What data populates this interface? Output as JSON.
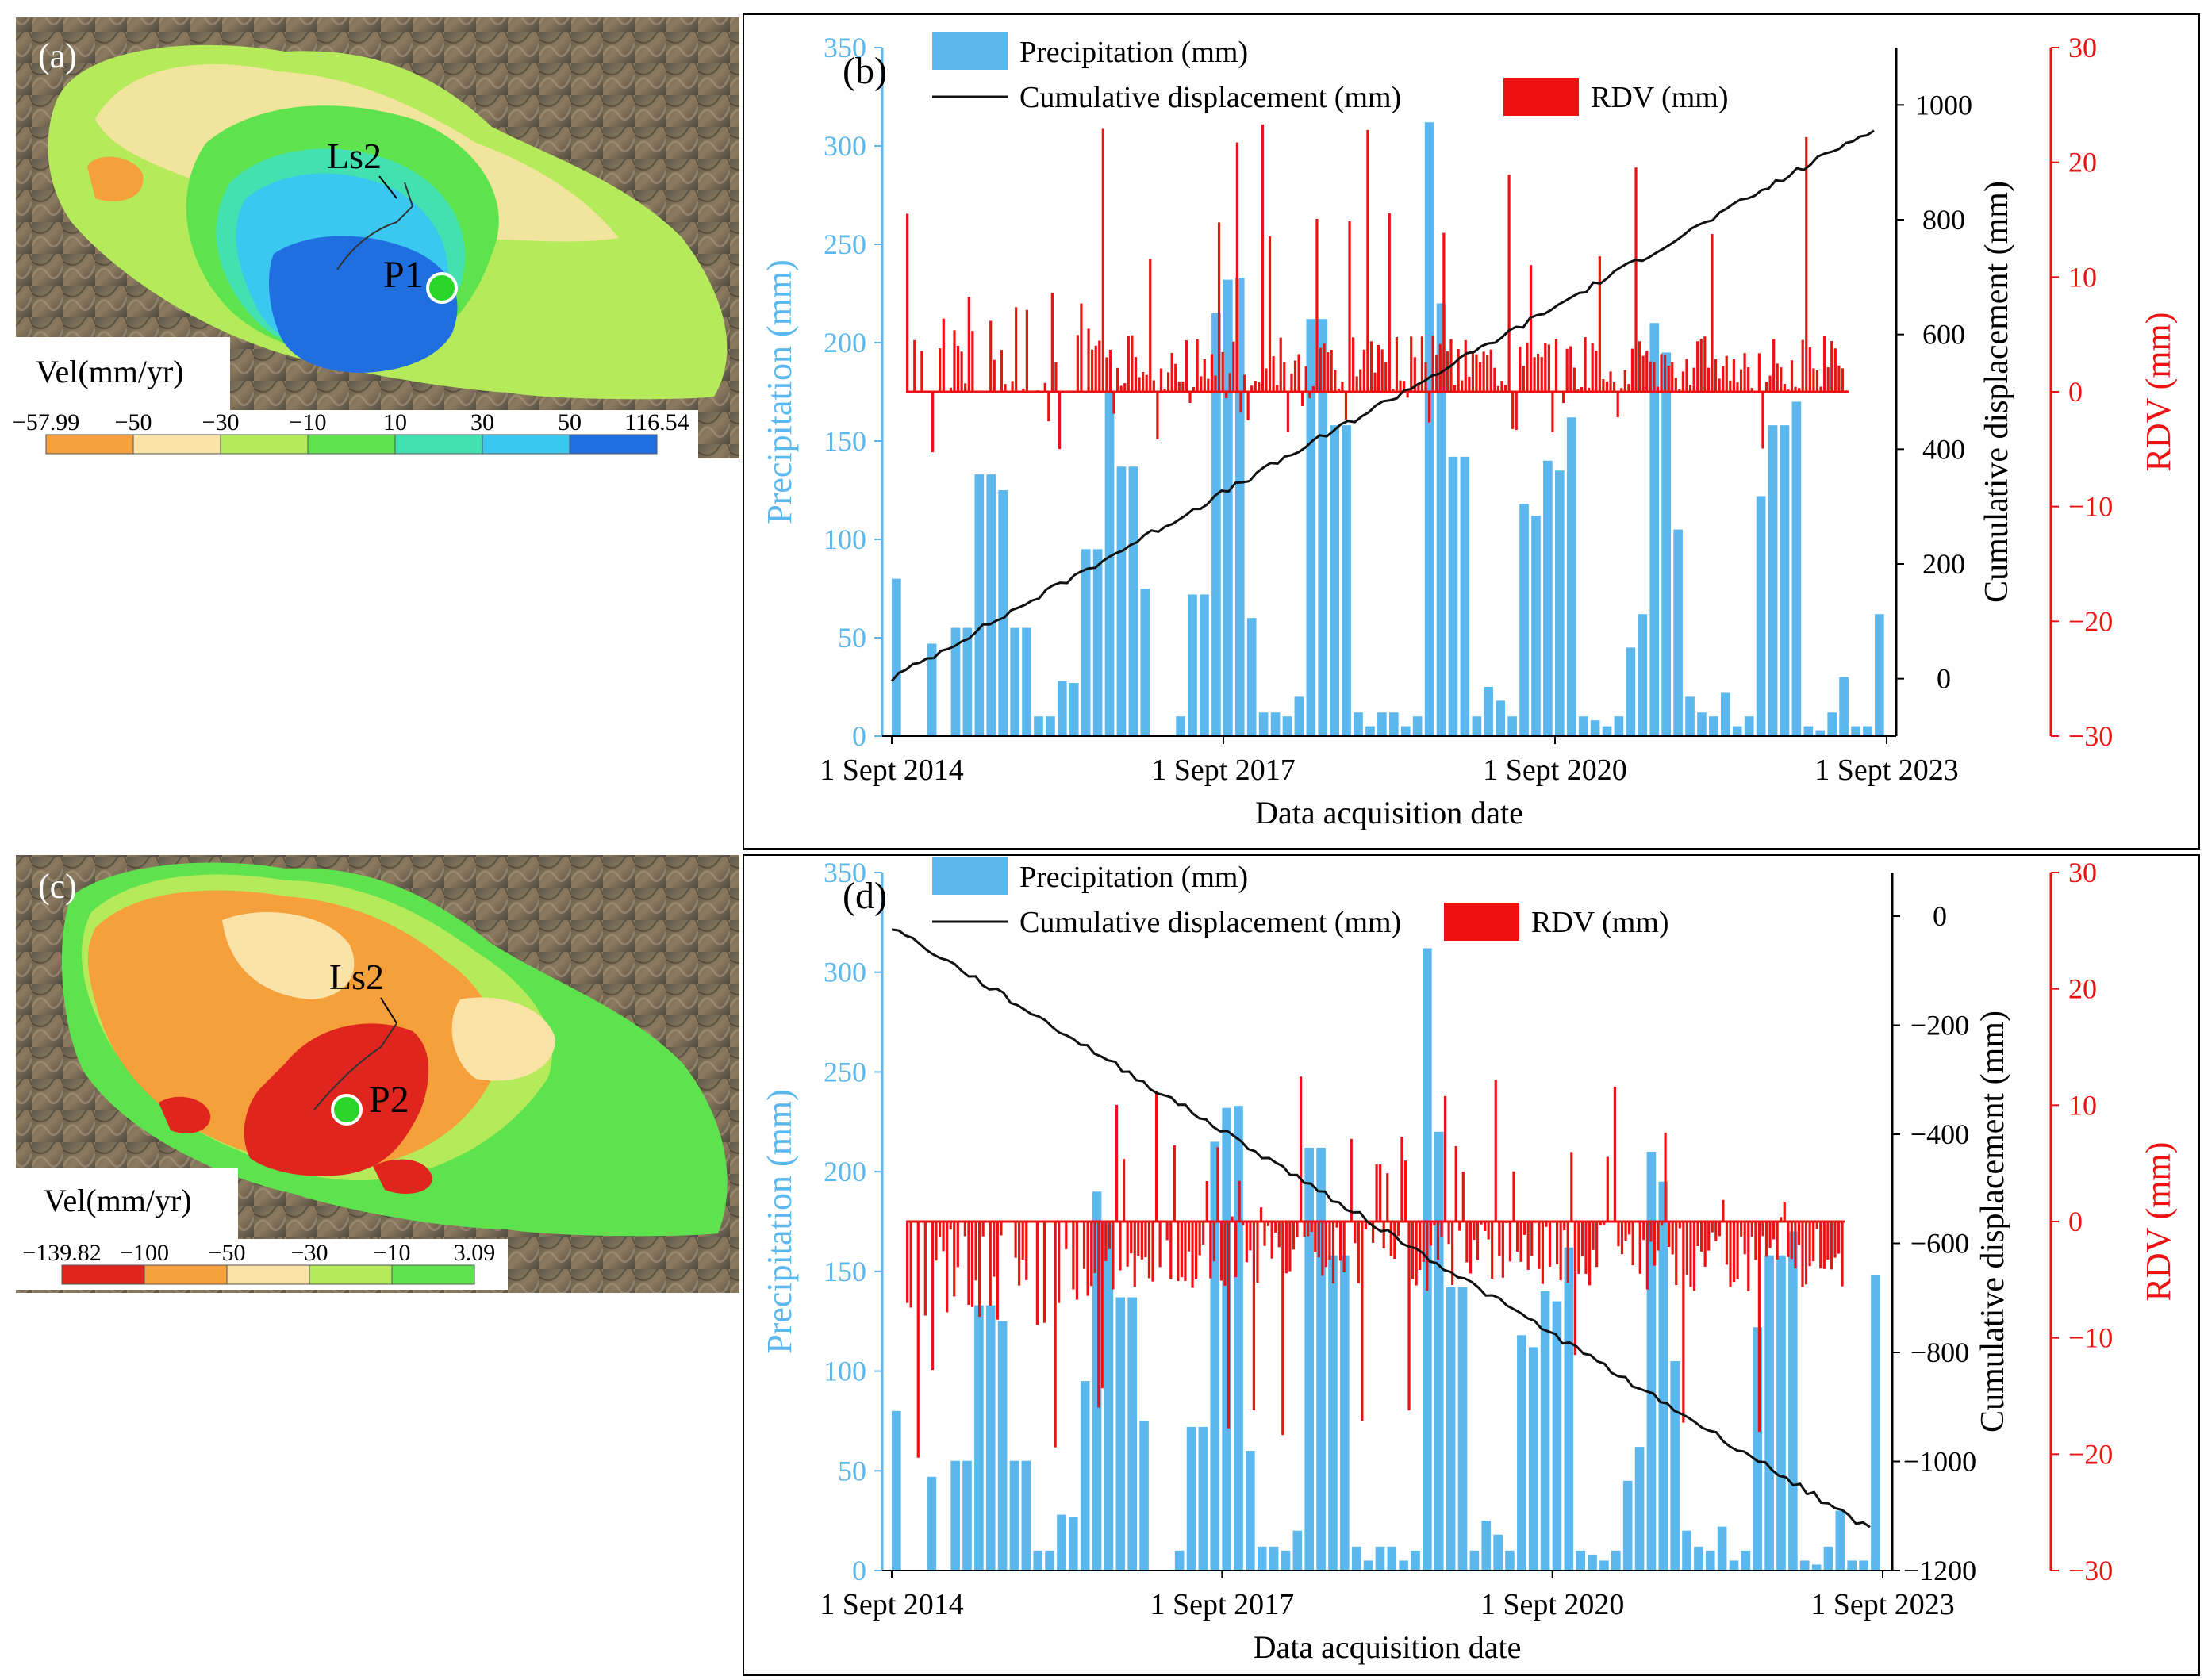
{
  "panels": {
    "a": {
      "label": "(a)",
      "point_label": "P1",
      "landslide_label": "Ls2",
      "legend_title": "Vel(mm/yr)",
      "legend_ticks": [
        "−57.99",
        "−50",
        "−30",
        "−10",
        "10",
        "30",
        "50",
        "116.54"
      ],
      "legend_colors": [
        "#f5a03a",
        "#fbe3a8",
        "#b5ea5a",
        "#5ee34e",
        "#43e0b0",
        "#3ac8f0",
        "#1f6fe0"
      ]
    },
    "c": {
      "label": "(c)",
      "point_label": "P2",
      "landslide_label": "Ls2",
      "legend_title": "Vel(mm/yr)",
      "legend_ticks": [
        "−139.82",
        "−100",
        "−50",
        "−30",
        "−10",
        "3.09"
      ],
      "legend_colors": [
        "#e0251f",
        "#f5a03a",
        "#fbe3a8",
        "#b5ea5a",
        "#5ee34e"
      ]
    }
  },
  "chart_data": [
    {
      "panel": "(b)",
      "type": "bar",
      "xlabel": "Data acquisition date",
      "x_ticks": [
        "1 Sept 2014",
        "1 Sept 2017",
        "1 Sept 2020",
        "1 Sept 2023"
      ],
      "ylabel_left": "Precipitation (mm)",
      "ylabel_right1": "Cumulative displacement (mm)",
      "ylabel_right2": "RDV (mm)",
      "ylim_left": [
        0,
        350
      ],
      "yticks_left": [
        "0",
        "50",
        "100",
        "150",
        "200",
        "250",
        "300",
        "350"
      ],
      "ylim_right1": [
        -100,
        1100
      ],
      "yticks_right1": [
        "0",
        "200",
        "400",
        "600",
        "800",
        "1000"
      ],
      "ylim_right2": [
        -30,
        30
      ],
      "yticks_right2": [
        "−30",
        "−20",
        "−10",
        "0",
        "10",
        "20",
        "30"
      ],
      "legend": [
        "Precipitation (mm)",
        "Cumulative displacement (mm)",
        "RDV (mm)"
      ],
      "precipitation_monthly": [
        80,
        0,
        0,
        47,
        0,
        55,
        55,
        133,
        133,
        125,
        55,
        55,
        10,
        10,
        28,
        27,
        95,
        95,
        175,
        137,
        137,
        75,
        0,
        0,
        10,
        72,
        72,
        215,
        232,
        233,
        60,
        12,
        12,
        10,
        20,
        212,
        212,
        158,
        158,
        12,
        5,
        12,
        12,
        5,
        10,
        312,
        220,
        142,
        142,
        10,
        25,
        18,
        10,
        118,
        112,
        140,
        135,
        162,
        10,
        8,
        5,
        10,
        45,
        62,
        210,
        195,
        105,
        20,
        12,
        10,
        22,
        5,
        10,
        122,
        158,
        158,
        170,
        5,
        3,
        12,
        30,
        5,
        5,
        62
      ],
      "displacement_start": 0,
      "displacement_end": 960,
      "rdv_style": "positive"
    },
    {
      "panel": "(d)",
      "type": "bar",
      "xlabel": "Data acquisition  date",
      "x_ticks": [
        "1 Sept 2014",
        "1 Sept 2017",
        "1 Sept 2020",
        "1 Sept 2023"
      ],
      "ylabel_left": "Precipitation (mm)",
      "ylabel_right1": "Cumulative displacement (mm)",
      "ylabel_right2": "RDV (mm)",
      "ylim_left": [
        0,
        350
      ],
      "yticks_left": [
        "0",
        "50",
        "100",
        "150",
        "200",
        "250",
        "300",
        "350"
      ],
      "ylim_right1": [
        -1200,
        80
      ],
      "yticks_right1": [
        "0",
        "−200",
        "−400",
        "−600",
        "−800",
        "−1000",
        "−1200"
      ],
      "ylim_right2": [
        -30,
        30
      ],
      "yticks_right2": [
        "−30",
        "−20",
        "−10",
        "0",
        "10",
        "20",
        "30"
      ],
      "legend": [
        "Precipitation (mm)",
        "Cumulative displacement (mm)",
        "RDV (mm)"
      ],
      "precipitation_monthly": [
        80,
        0,
        0,
        47,
        0,
        55,
        55,
        133,
        133,
        125,
        55,
        55,
        10,
        10,
        28,
        27,
        95,
        190,
        175,
        137,
        137,
        75,
        0,
        0,
        10,
        72,
        72,
        215,
        232,
        233,
        60,
        12,
        12,
        10,
        20,
        212,
        212,
        158,
        158,
        12,
        5,
        12,
        12,
        5,
        10,
        312,
        220,
        142,
        142,
        10,
        25,
        18,
        10,
        118,
        112,
        140,
        135,
        162,
        10,
        8,
        5,
        10,
        45,
        62,
        210,
        195,
        105,
        20,
        12,
        10,
        22,
        5,
        10,
        122,
        158,
        158,
        170,
        5,
        3,
        12,
        30,
        5,
        5,
        148
      ],
      "displacement_start": -20,
      "displacement_end": -1125,
      "rdv_style": "negative"
    }
  ]
}
